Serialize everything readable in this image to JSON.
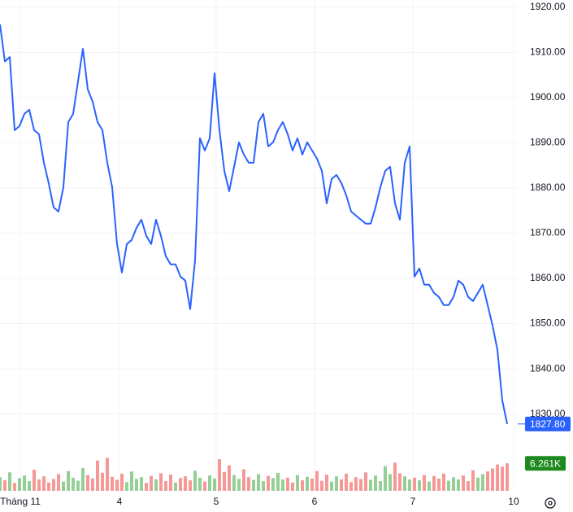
{
  "chart_data": {
    "type": "line",
    "series": [
      {
        "name": "Price",
        "color": "#2962ff",
        "values": [
          1916.2,
          1908,
          1909,
          1892.8,
          1893.7,
          1896.4,
          1897.3,
          1892.8,
          1891.9,
          1885.6,
          1881,
          1875.7,
          1874.8,
          1880.2,
          1894.6,
          1896.4,
          1903.6,
          1910.8,
          1901.8,
          1899.1,
          1894.6,
          1892.8,
          1885.6,
          1880.2,
          1867.6,
          1861.3,
          1867.6,
          1868.5,
          1871.2,
          1873,
          1869.4,
          1867.6,
          1873,
          1869.4,
          1864.9,
          1863.1,
          1863.1,
          1860.4,
          1859.5,
          1853.2,
          1864,
          1891,
          1888.3,
          1891,
          1905.4,
          1892.8,
          1883.8,
          1879.3,
          1884.7,
          1890.1,
          1887.4,
          1885.6,
          1885.6,
          1894.6,
          1896.4,
          1889.2,
          1890.1,
          1892.8,
          1894.6,
          1891.9,
          1888.3,
          1891,
          1887.4,
          1890.1,
          1888.3,
          1886.5,
          1883.8,
          1876.6,
          1882,
          1882.9,
          1881.1,
          1878.4,
          1874.8,
          1873.9,
          1873,
          1872.1,
          1872.1,
          1875.7,
          1880.2,
          1883.8,
          1884.7,
          1876.6,
          1873,
          1885.6,
          1889.2,
          1860.4,
          1862.2,
          1858.6,
          1858.6,
          1856.8,
          1855.9,
          1854.1,
          1854.1,
          1855.9,
          1859.5,
          1858.6,
          1855.9,
          1855,
          1856.8,
          1858.6,
          1854.1,
          1849.6,
          1844.2,
          1833,
          1827.8
        ]
      }
    ],
    "xlim": [
      0,
      106.17
    ],
    "xticks": [
      {
        "value": 4.17,
        "label": "Tháng 11"
      },
      {
        "value": 24.5,
        "label": "4"
      },
      {
        "value": 44.33,
        "label": "5"
      },
      {
        "value": 64.5,
        "label": "6"
      },
      {
        "value": 84.67,
        "label": "7"
      },
      {
        "value": 105.33,
        "label": "10"
      }
    ],
    "ylim": [
      1813,
      1921.6
    ],
    "yticks": [
      {
        "value": 1830,
        "label": "1830.00"
      },
      {
        "value": 1840,
        "label": "1840.00"
      },
      {
        "value": 1850,
        "label": "1850.00"
      },
      {
        "value": 1860,
        "label": "1860.00"
      },
      {
        "value": 1870,
        "label": "1870.00"
      },
      {
        "value": 1880,
        "label": "1880.00"
      },
      {
        "value": 1890,
        "label": "1890.00"
      },
      {
        "value": 1900,
        "label": "1900.00"
      },
      {
        "value": 1910,
        "label": "1910.00"
      },
      {
        "value": 1920,
        "label": "1920.00"
      }
    ],
    "grid": true,
    "price_marker": {
      "value": 1827.8,
      "label": "1827.80",
      "color": "#2962ff"
    },
    "volume": {
      "values": [
        3.1,
        2.4,
        4.2,
        1.8,
        2.9,
        3.5,
        2.2,
        4.8,
        2.6,
        3.3,
        1.9,
        2.7,
        3.8,
        2.1,
        4.5,
        3.0,
        2.3,
        5.2,
        3.6,
        2.8,
        6.9,
        4.1,
        7.5,
        3.2,
        2.5,
        3.9,
        2.0,
        4.4,
        2.7,
        3.1,
        1.8,
        3.4,
        2.6,
        4.0,
        2.2,
        3.7,
        1.9,
        2.9,
        3.3,
        2.4,
        4.6,
        3.0,
        2.1,
        3.5,
        2.8,
        7.2,
        4.3,
        5.8,
        3.6,
        2.7,
        4.9,
        3.1,
        2.5,
        3.8,
        2.2,
        3.4,
        2.9,
        4.1,
        2.6,
        3.0,
        1.9,
        3.6,
        2.4,
        3.2,
        2.8,
        4.5,
        2.3,
        3.7,
        2.1,
        3.3,
        2.6,
        3.9,
        2.0,
        3.1,
        2.7,
        4.2,
        2.5,
        3.5,
        2.2,
        5.6,
        3.8,
        6.4,
        4.0,
        3.3,
        2.6,
        3.0,
        2.4,
        3.6,
        2.1,
        3.4,
        2.8,
        3.9,
        2.3,
        3.1,
        2.6,
        3.5,
        2.2,
        4.7,
        3.0,
        3.8,
        4.4,
        5.1,
        6.0,
        5.5,
        6.261
      ],
      "vlim": [
        0,
        20
      ],
      "up_color": "#4caf50",
      "down_color": "#ef5350",
      "last_label": {
        "value": 6.261,
        "label": "6.261K",
        "color": "#1e8a1e"
      }
    }
  }
}
